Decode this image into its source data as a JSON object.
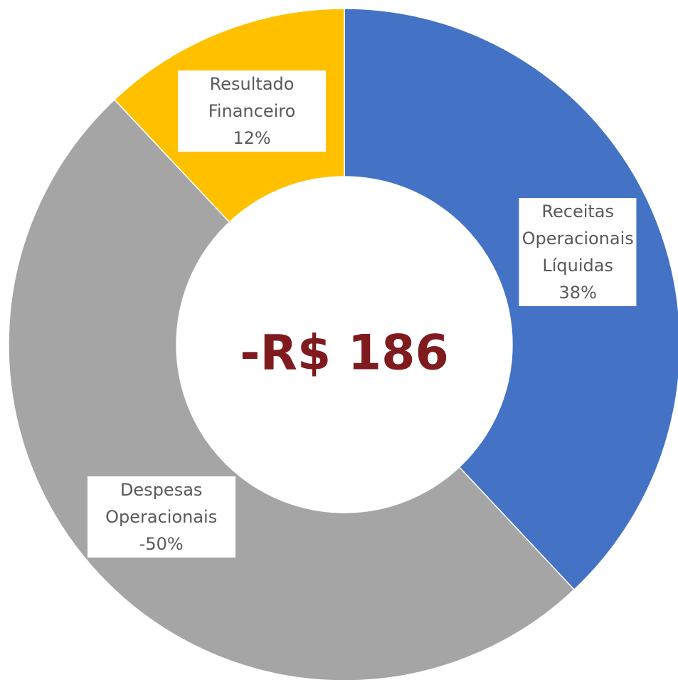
{
  "chart_data": {
    "type": "donut",
    "center_label": "-R$ 186",
    "categories": [
      "Receitas Operacionais Líquidas",
      "Despesas Operacionais",
      "Resultado Financeiro"
    ],
    "values": [
      38,
      -50,
      12
    ],
    "value_labels": [
      "38%",
      "-50%",
      "12%"
    ],
    "colors": [
      "#4472c4",
      "#a5a5a5",
      "#ffc000"
    ]
  }
}
